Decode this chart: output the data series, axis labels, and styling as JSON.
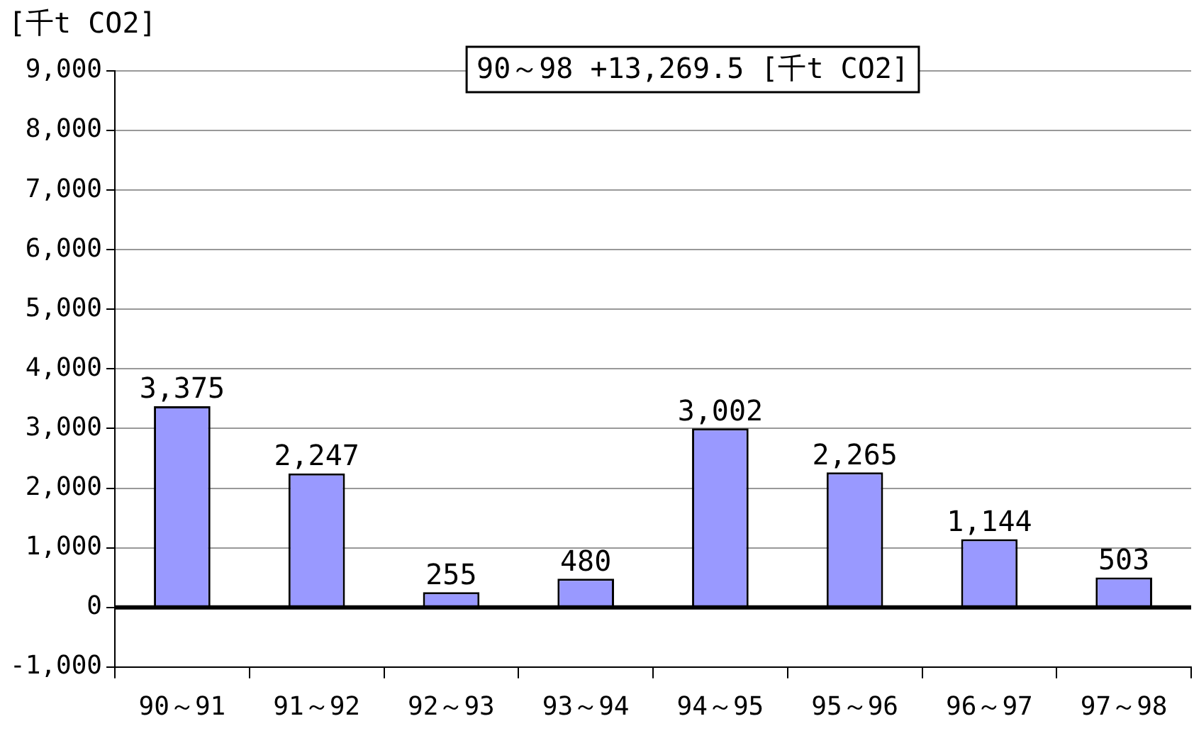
{
  "chart_data": {
    "type": "bar",
    "ylabel": "[千t CO2]",
    "annotations": [
      "90～98 +13,269.5 [千t CO2]"
    ],
    "categories": [
      "90～91",
      "91～92",
      "92～93",
      "93～94",
      "94～95",
      "95～96",
      "96～97",
      "97～98"
    ],
    "values": [
      3375,
      2247,
      255,
      480,
      3002,
      2265,
      1144,
      503
    ],
    "value_labels": [
      "3,375",
      "2,247",
      "255",
      "480",
      "3,002",
      "2,265",
      "1,144",
      "503"
    ],
    "color": "#9999ff",
    "ylim": [
      -1000,
      9000
    ],
    "yticks": [
      {
        "value": -1000,
        "label": "-1,000"
      },
      0,
      {
        "value": 1000,
        "label": "1,000"
      },
      {
        "value": 2000,
        "label": "2,000"
      },
      {
        "value": 3000,
        "label": "3,000"
      },
      {
        "value": 4000,
        "label": "4,000"
      },
      {
        "value": 5000,
        "label": "5,000"
      },
      {
        "value": 6000,
        "label": "6,000"
      },
      {
        "value": 7000,
        "label": "7,000"
      },
      {
        "value": 8000,
        "label": "8,000"
      },
      {
        "value": 9000,
        "label": "9,000"
      }
    ],
    "ref_lines": [
      {
        "axis": "y",
        "value": 0,
        "color": "#000000"
      }
    ],
    "grid": "y",
    "legend": false
  }
}
